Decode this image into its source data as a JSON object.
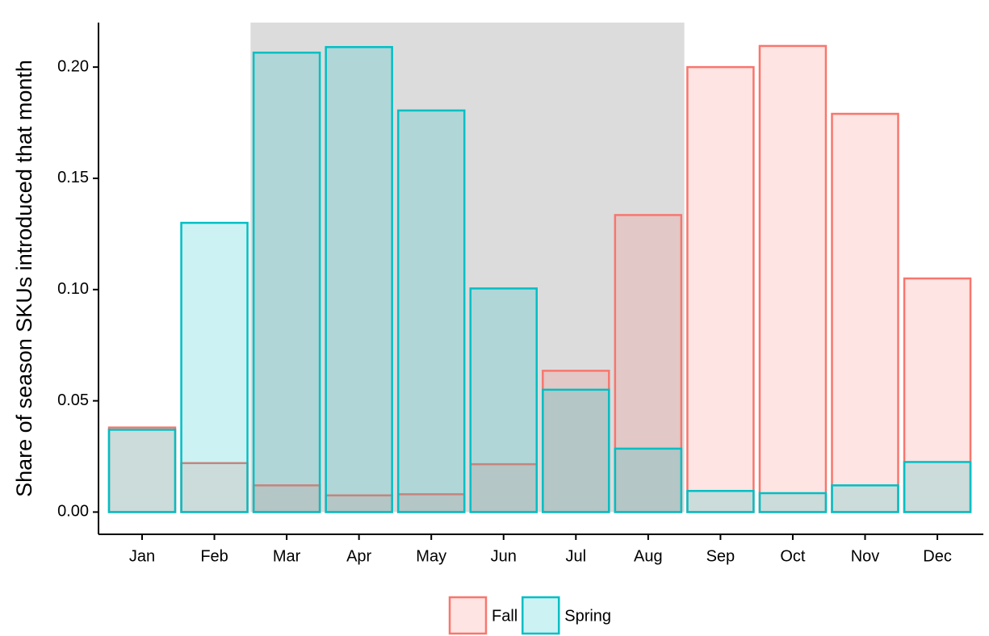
{
  "chart_data": {
    "type": "bar",
    "y_label": "Share of season SKUs introduced that month",
    "categories": [
      "Jan",
      "Feb",
      "Mar",
      "Apr",
      "May",
      "Jun",
      "Jul",
      "Aug",
      "Sep",
      "Oct",
      "Nov",
      "Dec"
    ],
    "series": [
      {
        "name": "Fall",
        "color": "#f8766d",
        "values": [
          0.038,
          0.022,
          0.012,
          0.0075,
          0.008,
          0.0215,
          0.0635,
          0.1335,
          0.2,
          0.2095,
          0.179,
          0.105
        ]
      },
      {
        "name": "Spring",
        "color": "#00bfc4",
        "values": [
          0.037,
          0.13,
          0.2065,
          0.209,
          0.1805,
          0.1005,
          0.055,
          0.0285,
          0.0095,
          0.0085,
          0.012,
          0.0225
        ]
      }
    ],
    "shaded": {
      "from": "Mar",
      "to": "Aug",
      "color": "#dcdcdc"
    },
    "ylim": [
      -0.01,
      0.22
    ],
    "yticks": [
      {
        "value": 0,
        "label": "0.00"
      },
      {
        "value": 0.05,
        "label": "0.05"
      },
      {
        "value": 0.1,
        "label": "0.10"
      },
      {
        "value": 0.15,
        "label": "0.15"
      },
      {
        "value": 0.2,
        "label": "0.20"
      }
    ],
    "legend": "bottom"
  }
}
